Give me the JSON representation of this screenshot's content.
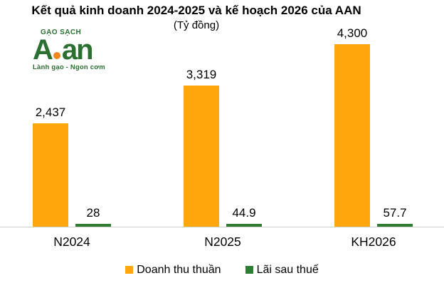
{
  "logo": {
    "tagline_top": "GẠO SẠCH",
    "wordmark_a": "A",
    "wordmark_an": "an",
    "tagline_bottom": "Lành gạo - Ngon cơm",
    "green": "#2B7030",
    "dot_orange": "#F0861F"
  },
  "chart_data": {
    "type": "bar",
    "title": "Kết quả kinh doanh 2024-2025 và kế hoạch 2026 của AAN",
    "subtitle": "(Tỷ đồng)",
    "unit": "Tỷ đồng",
    "categories": [
      "N2024",
      "N2025",
      "KH2026"
    ],
    "series": [
      {
        "name": "Doanh thu thuần",
        "values": [
          2437,
          3319,
          4300
        ],
        "labels": [
          "2,437",
          "3,319",
          "4,300"
        ],
        "color": "#FFA70D"
      },
      {
        "name": "Lãi sau thuế",
        "values": [
          28,
          44.9,
          57.7
        ],
        "labels": [
          "28",
          "44.9",
          "57.7"
        ],
        "color": "#2E7D32"
      }
    ],
    "ylim": [
      0,
      4300
    ],
    "grid": false,
    "y_axis_visible": false,
    "data_labels": true,
    "legend_position": "bottom",
    "axis_line_color": "#CFCFCF"
  }
}
